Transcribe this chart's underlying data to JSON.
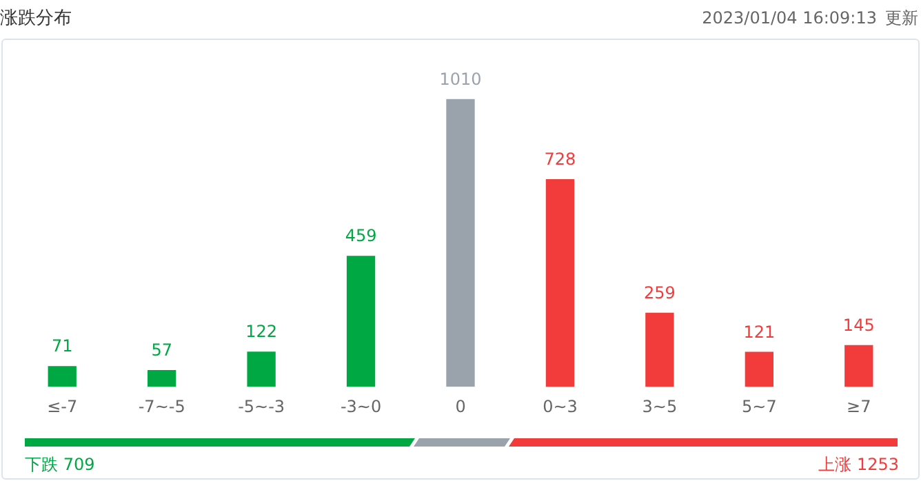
{
  "chart_data": {
    "type": "bar",
    "title": "涨跌分布",
    "subtitle": "2023/01/04 16:09:13",
    "categories": [
      "≤-7",
      "-7~-5",
      "-5~-3",
      "-3~0",
      "0",
      "0~3",
      "3~5",
      "5~7",
      "≥7"
    ],
    "values": [
      71,
      57,
      122,
      459,
      1010,
      728,
      259,
      121,
      145
    ],
    "colors": [
      "#00a843",
      "#00a843",
      "#00a843",
      "#00a843",
      "#9aa2ac",
      "#f23c3c",
      "#f23c3c",
      "#f23c3c",
      "#f23c3c"
    ],
    "data_labels": true,
    "grid": false,
    "legend": false,
    "annotations": [
      "下跌 709",
      "上涨 1253",
      "更新"
    ]
  }
}
